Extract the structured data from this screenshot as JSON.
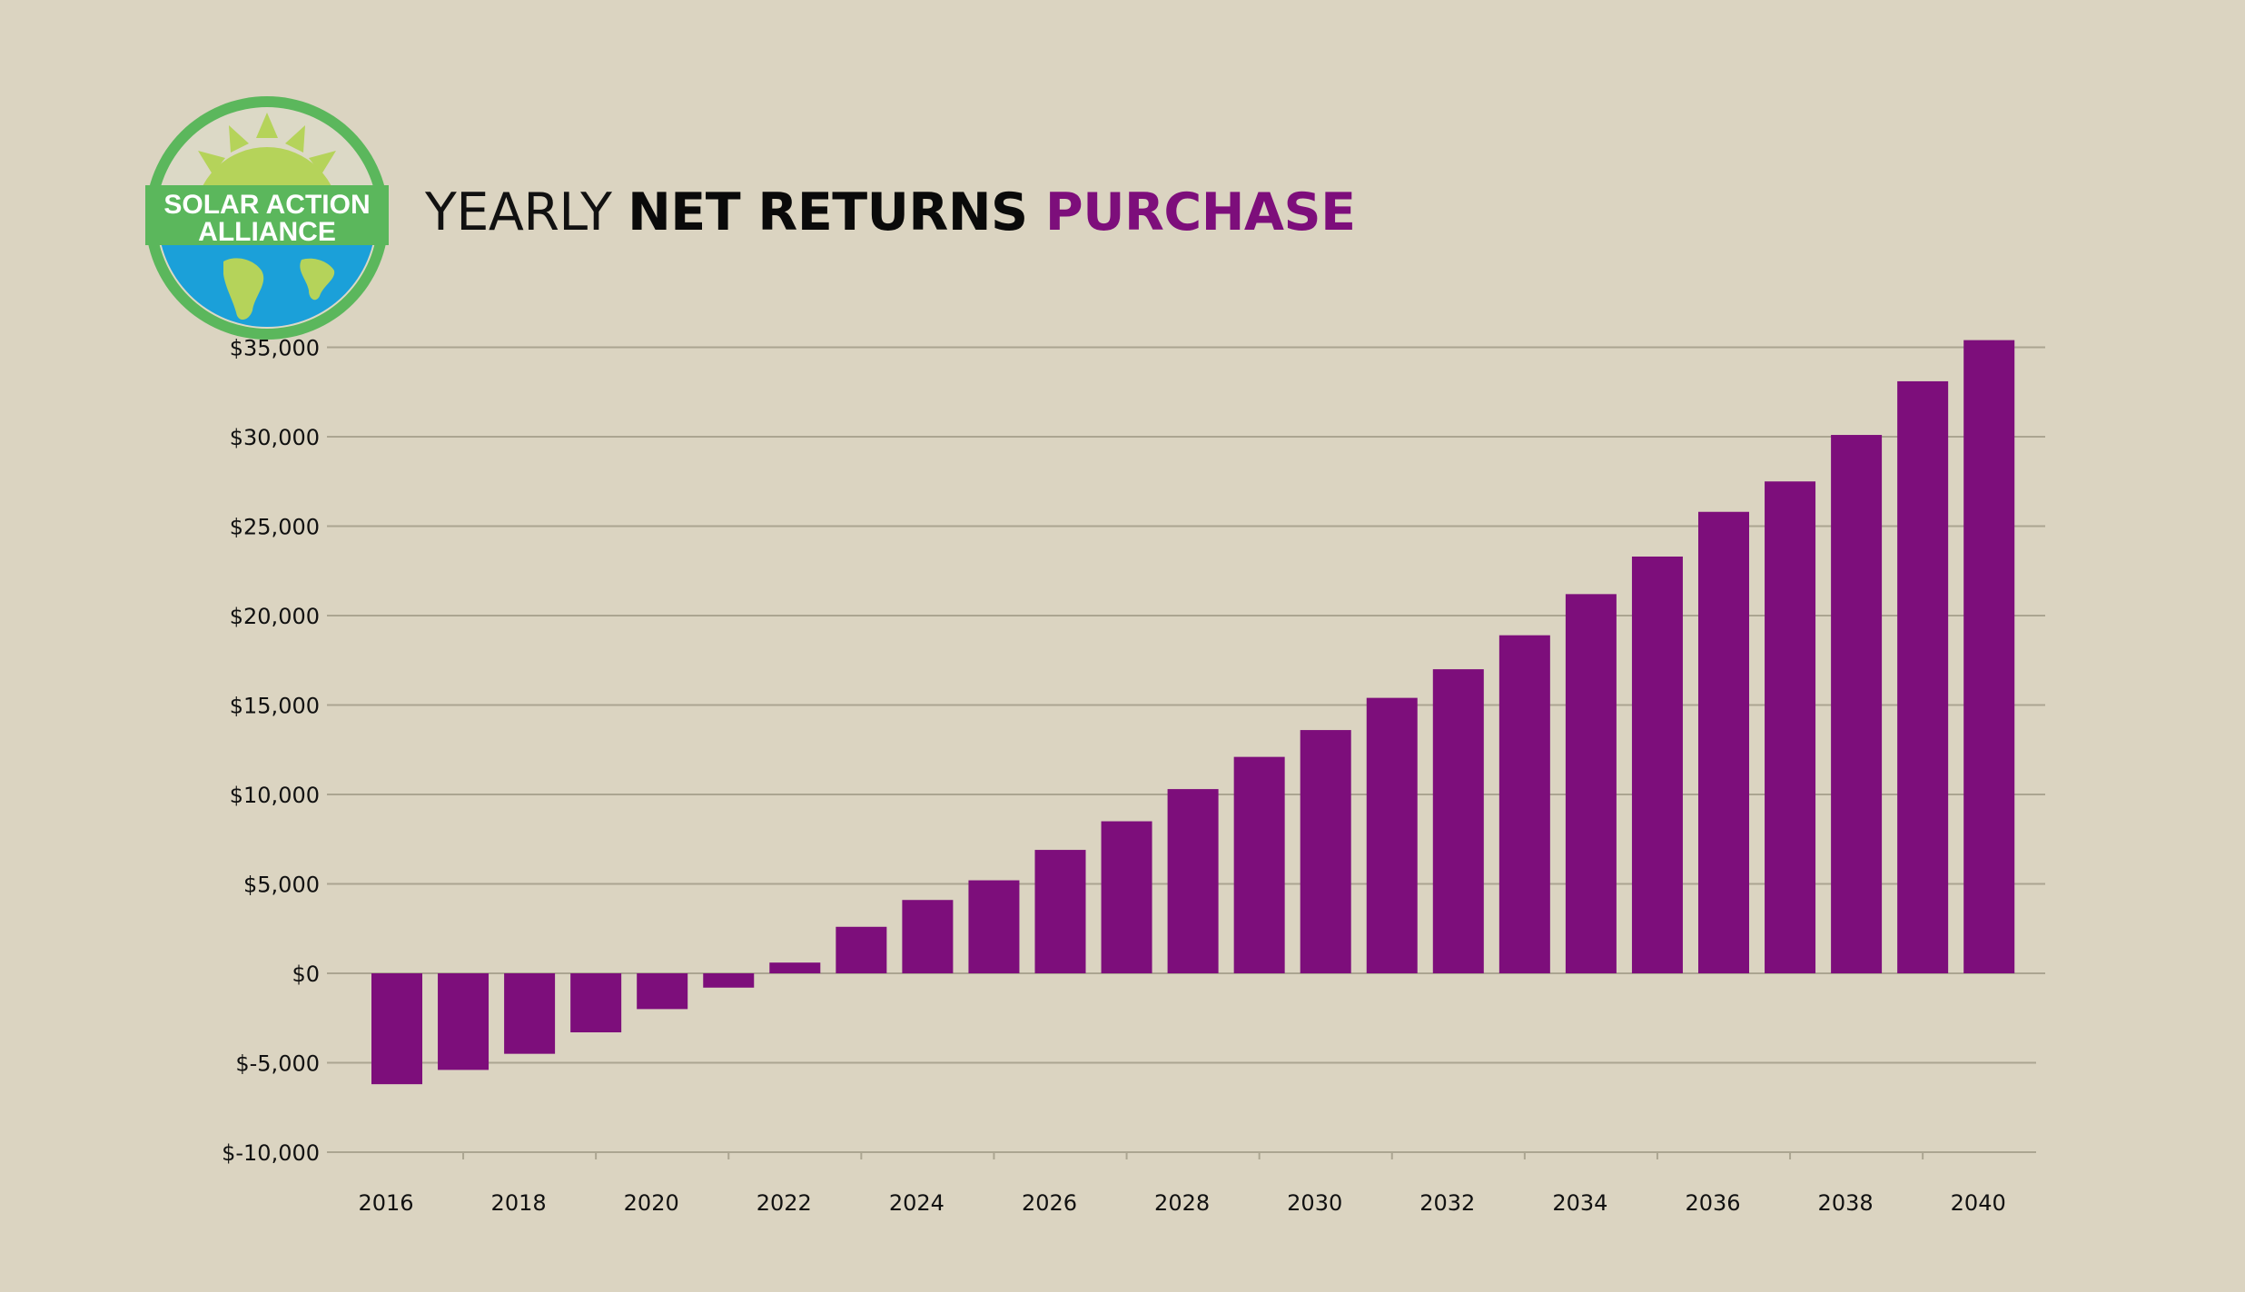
{
  "logo": {
    "line1": "SOLAR ACTION",
    "line2": "ALLIANCE"
  },
  "title": {
    "part1": "YEARLY ",
    "part2": "NET RETURNS ",
    "part3": "PURCHASE"
  },
  "colors": {
    "background": "#dbd4c1",
    "bar": "#7d0e7b",
    "grid": "#aba591",
    "title_accent": "#7d0e7b",
    "logo_green": "#5bb75c",
    "logo_sun": "#b5d35a",
    "logo_ocean": "#1ba0d9"
  },
  "chart_data": {
    "type": "bar",
    "categories": [
      "2016",
      "2017",
      "2018",
      "2019",
      "2020",
      "2021",
      "2022",
      "2023",
      "2024",
      "2025",
      "2026",
      "2027",
      "2028",
      "2029",
      "2030",
      "2031",
      "2032",
      "2033",
      "2034",
      "2035",
      "2036",
      "2037",
      "2038",
      "2039",
      "2040"
    ],
    "values": [
      -6200,
      -5400,
      -4500,
      -3300,
      -2000,
      -800,
      600,
      2600,
      4100,
      5200,
      6900,
      8500,
      10300,
      12100,
      13600,
      15400,
      17000,
      18900,
      21200,
      23300,
      25800,
      27500,
      30100,
      33100,
      35400
    ],
    "x_tick_labels": [
      "2016",
      "2018",
      "2020",
      "2022",
      "2024",
      "2026",
      "2028",
      "2030",
      "2032",
      "2034",
      "2036",
      "2038",
      "2040"
    ],
    "y_ticks": [
      {
        "value": 35000,
        "label": "$35,000"
      },
      {
        "value": 30000,
        "label": "$30,000"
      },
      {
        "value": 25000,
        "label": "$25,000"
      },
      {
        "value": 20000,
        "label": "$20,000"
      },
      {
        "value": 15000,
        "label": "$15,000"
      },
      {
        "value": 10000,
        "label": "$10,000"
      },
      {
        "value": 5000,
        "label": "$5,000"
      },
      {
        "value": 0,
        "label": "$0"
      },
      {
        "value": -5000,
        "label": "$-5,000"
      },
      {
        "value": -10000,
        "label": "$-10,000"
      }
    ],
    "ylim": [
      -10000,
      35000
    ],
    "grid": true,
    "legend": "none",
    "xlabel": "",
    "ylabel": ""
  }
}
